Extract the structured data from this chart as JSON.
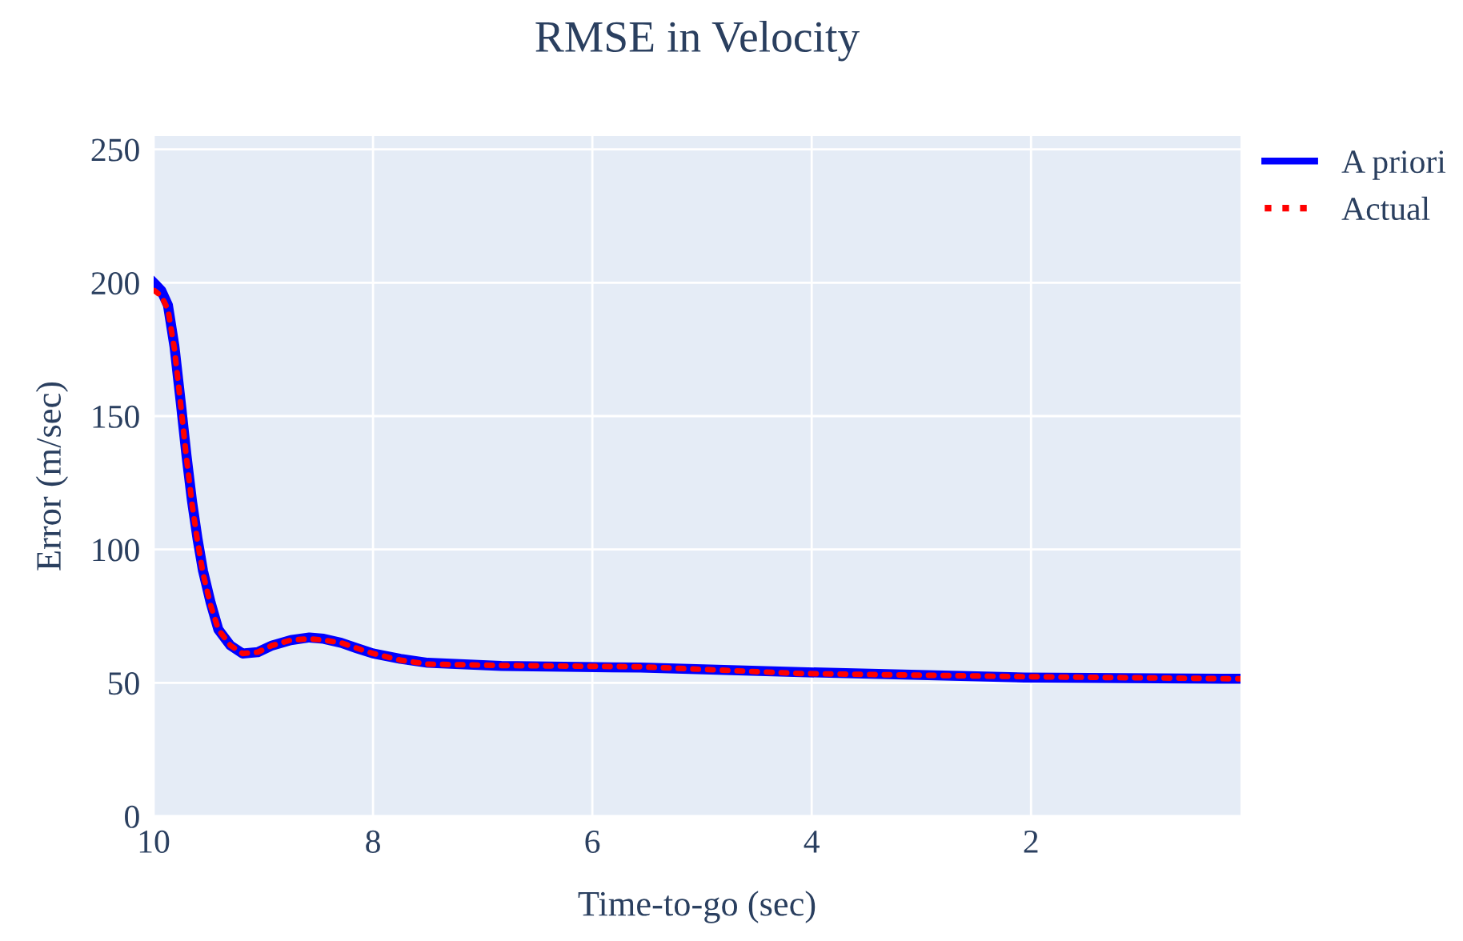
{
  "chart_data": {
    "type": "line",
    "title": "RMSE in Velocity",
    "xlabel": "Time-to-go (sec)",
    "ylabel": "Error (m/sec)",
    "x": [
      10,
      9.99,
      9.93,
      9.87,
      9.81,
      9.75,
      9.7,
      9.65,
      9.6,
      9.55,
      9.48,
      9.41,
      9.3,
      9.19,
      9.05,
      8.92,
      8.75,
      8.58,
      8.45,
      8.29,
      8.15,
      8.0,
      7.75,
      7.5,
      6.83,
      5.56,
      4.1,
      2.06,
      0.09
    ],
    "series": [
      {
        "name": "A priori",
        "color": "#0000ff",
        "line_style": "solid",
        "values": [
          200,
          199.6,
          197,
          191.6,
          176,
          154,
          135,
          118,
          104,
          92,
          80,
          70,
          64,
          61,
          61.5,
          64,
          66,
          67,
          66.5,
          65,
          63,
          61,
          59,
          57.5,
          56.3,
          55.7,
          54,
          52,
          51.5
        ]
      },
      {
        "name": "Actual",
        "color": "#ff0000",
        "line_style": "dotted",
        "values": [
          197,
          197,
          195,
          190,
          175,
          153,
          134,
          117,
          103,
          91,
          79,
          70,
          64,
          61,
          61.5,
          64,
          66,
          66.5,
          66,
          65,
          63,
          61,
          58.5,
          57,
          56.5,
          56,
          53.5,
          52.3,
          51.5
        ]
      }
    ],
    "xlim": [
      10,
      0.09
    ],
    "xticks": [
      10,
      8,
      6,
      4,
      2
    ],
    "ylim": [
      0,
      255
    ],
    "yticks": [
      0,
      50,
      100,
      150,
      200,
      250
    ],
    "grid": true,
    "legend": "top right",
    "marker": "none"
  }
}
